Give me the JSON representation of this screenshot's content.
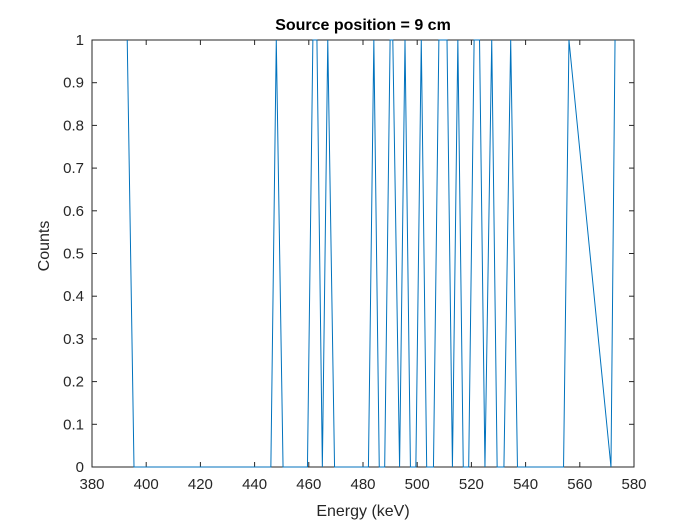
{
  "chart_data": {
    "type": "line",
    "title": "Source position = 9 cm",
    "xlabel": "Energy (keV)",
    "ylabel": "Counts",
    "xlim": [
      380,
      580
    ],
    "ylim": [
      0,
      1
    ],
    "xticks": [
      380,
      400,
      420,
      440,
      460,
      480,
      500,
      520,
      540,
      560,
      580
    ],
    "yticks": [
      0,
      0.1,
      0.2,
      0.3,
      0.4,
      0.5,
      0.6,
      0.7,
      0.8,
      0.9,
      1
    ],
    "ytick_labels": [
      "0",
      "0.1",
      "0.2",
      "0.3",
      "0.4",
      "0.5",
      "0.6",
      "0.7",
      "0.8",
      "0.9",
      "1"
    ],
    "grid": false,
    "line_color": "#0072BD",
    "series": [
      {
        "x": [
          393,
          395.5,
          446,
          448,
          450.5,
          459.5,
          461.5,
          463,
          465,
          467,
          469.5,
          482,
          484,
          486,
          488,
          490,
          491,
          493.5,
          495.5,
          497.5,
          499.5,
          501.5,
          503.5,
          506,
          508,
          511,
          513,
          515,
          517,
          519,
          521,
          523,
          525,
          527.5,
          529.5,
          532,
          534.5,
          537,
          554,
          556,
          571.5,
          573
        ],
        "y": [
          1,
          0,
          0,
          1,
          0,
          0,
          1,
          1,
          0,
          1,
          0,
          0,
          1,
          0,
          0,
          1,
          1,
          0,
          1,
          0,
          0,
          1,
          0,
          0,
          1,
          1,
          0,
          1,
          0,
          0,
          1,
          1,
          0,
          1,
          0,
          0,
          1,
          0,
          0,
          1,
          0,
          1
        ]
      }
    ]
  }
}
